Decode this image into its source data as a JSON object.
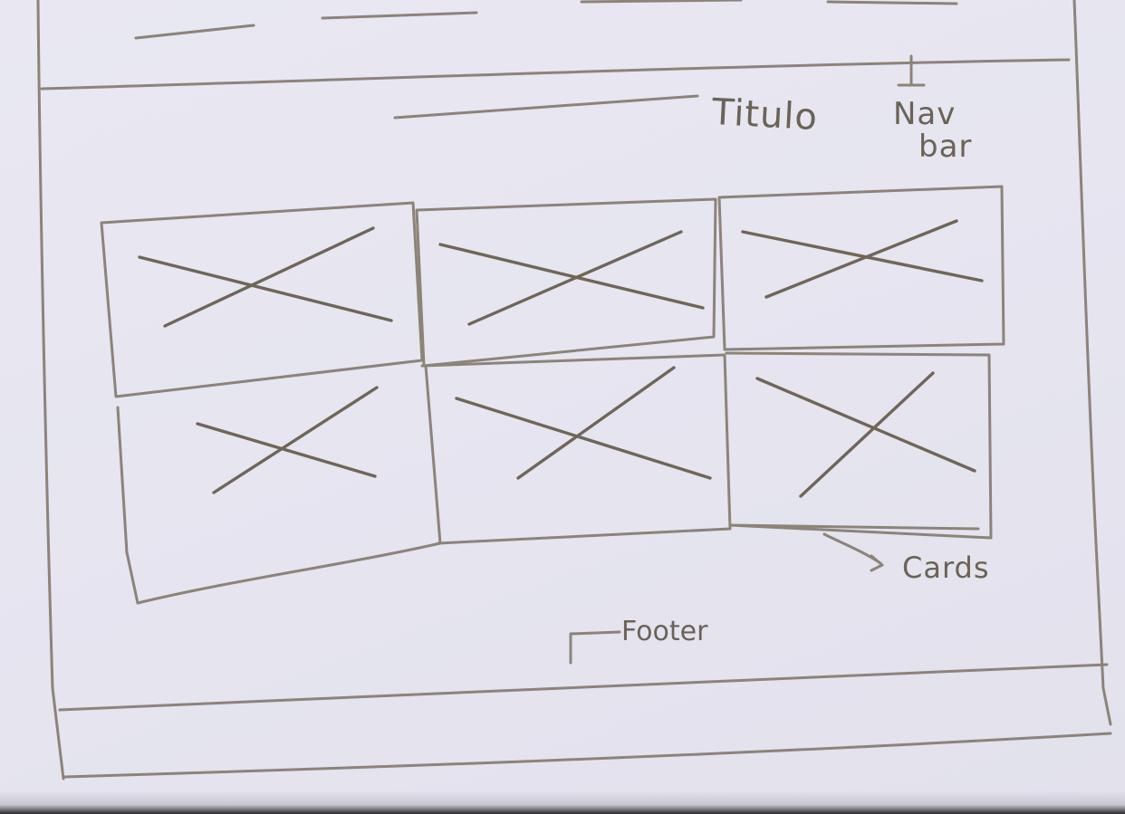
{
  "labels": {
    "title": "Titulo",
    "nav": "Nav",
    "bar": "bar",
    "cards": "Cards",
    "footer": "Footer"
  },
  "sections": {
    "navbar_items": 4,
    "card_grid": {
      "rows": 2,
      "columns": 3,
      "total": 6
    }
  },
  "colors": {
    "paper": "#e7e6f0",
    "pencil": "#8c8478"
  }
}
